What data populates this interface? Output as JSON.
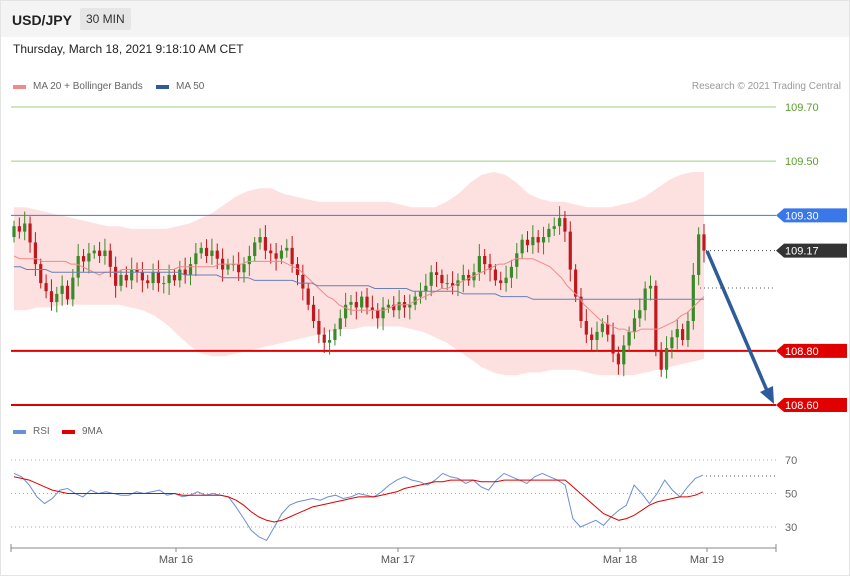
{
  "header": {
    "symbol": "USD/JPY",
    "interval": "30 MIN"
  },
  "timestamp": "Thursday, March 18, 2021 9:18:10 AM CET",
  "legend": {
    "ma20": {
      "label": "MA 20 + Bollinger Bands",
      "color": "#f08a8a"
    },
    "ma50": {
      "label": "MA 50",
      "color": "#2f5b9a"
    }
  },
  "copyright": "Research © 2021 Trading Central",
  "rsi_legend": {
    "rsi": {
      "label": "RSI",
      "color": "#6c8fd6"
    },
    "ma9": {
      "label": "9MA",
      "color": "#e00000"
    }
  },
  "colors": {
    "up": "#3a8a2a",
    "down": "#c0181c",
    "support": "#e00000",
    "resistance": "#3a78ea",
    "target": "#666666",
    "arrow": "#2f5b9a",
    "band": "#fde0e0"
  },
  "chart_data": [
    {
      "type": "candlestick",
      "ylim": [
        108.55,
        109.75
      ],
      "x_ticks": [
        "Mar 16",
        "Mar 17",
        "Mar 18",
        "Mar 19"
      ],
      "levels": [
        {
          "value": 109.7,
          "label": "109.70",
          "kind": "target"
        },
        {
          "value": 109.5,
          "label": "109.50",
          "kind": "target"
        },
        {
          "value": 109.3,
          "label": "109.30",
          "kind": "resistance"
        },
        {
          "value": 109.17,
          "label": "109.17",
          "kind": "last"
        },
        {
          "value": 108.8,
          "label": "108.80",
          "kind": "support"
        },
        {
          "value": 108.6,
          "label": "108.60",
          "kind": "support"
        }
      ],
      "close": [
        109.26,
        109.24,
        109.27,
        109.2,
        109.12,
        109.05,
        109.02,
        108.98,
        109.01,
        109.04,
        108.99,
        109.07,
        109.15,
        109.13,
        109.16,
        109.17,
        109.15,
        109.17,
        109.11,
        109.04,
        109.08,
        109.06,
        109.1,
        109.09,
        109.06,
        109.05,
        109.09,
        109.05,
        109.05,
        109.08,
        109.06,
        109.1,
        109.08,
        109.12,
        109.16,
        109.18,
        109.15,
        109.17,
        109.14,
        109.1,
        109.12,
        109.12,
        109.09,
        109.12,
        109.15,
        109.2,
        109.22,
        109.17,
        109.16,
        109.14,
        109.17,
        109.18,
        109.12,
        109.08,
        109.03,
        108.97,
        108.91,
        108.86,
        108.83,
        108.84,
        108.88,
        108.92,
        108.97,
        108.98,
        108.96,
        109.0,
        108.96,
        108.95,
        108.92,
        108.96,
        108.97,
        108.95,
        108.98,
        108.96,
        108.97,
        109.0,
        109.02,
        109.04,
        109.09,
        109.08,
        109.05,
        109.05,
        109.04,
        109.06,
        109.08,
        109.06,
        109.09,
        109.15,
        109.12,
        109.1,
        109.06,
        109.05,
        109.07,
        109.11,
        109.16,
        109.21,
        109.19,
        109.22,
        109.2,
        109.22,
        109.25,
        109.26,
        109.29,
        109.24,
        109.1,
        109.0,
        108.91,
        108.86,
        108.84,
        108.87,
        108.9,
        108.86,
        108.79,
        108.75,
        108.82,
        108.87,
        108.92,
        108.95,
        109.03,
        109.04,
        108.8,
        108.73,
        108.81,
        108.85,
        108.88,
        108.84,
        108.91,
        109.08,
        109.23,
        109.17
      ],
      "ma20": [
        109.15,
        109.14,
        109.14,
        109.14,
        109.14,
        109.13,
        109.13,
        109.13,
        109.13,
        109.13,
        109.12,
        109.12,
        109.11,
        109.1,
        109.09,
        109.08,
        109.09,
        109.09,
        109.09,
        109.1,
        109.1,
        109.1,
        109.1,
        109.1,
        109.1,
        109.1,
        109.1,
        109.1,
        109.1,
        109.11,
        109.11,
        109.11,
        109.11,
        109.11,
        109.11,
        109.11,
        109.12,
        109.12,
        109.12,
        109.12,
        109.12,
        109.13,
        109.13,
        109.13,
        109.13,
        109.13,
        109.13,
        109.13,
        109.12,
        109.11,
        109.1,
        109.08,
        109.06,
        109.04,
        109.02,
        109.0,
        108.99,
        108.97,
        108.96,
        108.95,
        108.95,
        108.95,
        108.95,
        108.95,
        108.95,
        108.95,
        108.96,
        108.97,
        108.97,
        108.97,
        108.98,
        108.99,
        109.0,
        109.01,
        109.02,
        109.03,
        109.03,
        109.04,
        109.05,
        109.06,
        109.07,
        109.08,
        109.09,
        109.1,
        109.11,
        109.12,
        109.12,
        109.13,
        109.14,
        109.14,
        109.14,
        109.14,
        109.13,
        109.12,
        109.11,
        109.09,
        109.07,
        109.04,
        109.02,
        109.0,
        108.97,
        108.95,
        108.93,
        108.91,
        108.9,
        108.89,
        108.88,
        108.88,
        108.87,
        108.87,
        108.88,
        108.88,
        108.88,
        108.88,
        108.89,
        108.9,
        108.91,
        108.93,
        108.94,
        108.96,
        108.98,
        109.0
      ],
      "ma50": [
        109.11,
        109.11,
        109.1,
        109.1,
        109.1,
        109.1,
        109.09,
        109.09,
        109.09,
        109.09,
        109.09,
        109.09,
        109.09,
        109.09,
        109.09,
        109.09,
        109.09,
        109.09,
        109.09,
        109.09,
        109.09,
        109.09,
        109.09,
        109.09,
        109.09,
        109.09,
        109.09,
        109.08,
        109.08,
        109.08,
        109.08,
        109.08,
        109.08,
        109.07,
        109.07,
        109.07,
        109.07,
        109.07,
        109.06,
        109.06,
        109.06,
        109.06,
        109.06,
        109.06,
        109.06,
        109.05,
        109.05,
        109.05,
        109.04,
        109.04,
        109.04,
        109.04,
        109.04,
        109.04,
        109.04,
        109.04,
        109.04,
        109.03,
        109.03,
        109.03,
        109.03,
        109.03,
        109.03,
        109.02,
        109.02,
        109.02,
        109.02,
        109.02,
        109.02,
        109.02,
        109.02,
        109.01,
        109.01,
        109.01,
        109.01,
        109.01,
        109.01,
        109.0,
        109.0,
        109.0,
        109.0,
        109.0,
        108.99,
        108.99,
        108.99,
        108.99,
        108.99,
        108.99,
        108.99,
        108.99,
        108.99,
        108.99,
        108.99,
        108.99,
        108.99,
        108.99,
        108.99,
        108.99,
        108.99,
        108.99,
        108.99,
        108.99,
        108.99,
        108.99,
        108.99,
        108.99,
        108.99,
        108.99,
        108.99,
        108.99
      ],
      "bb_upper": [
        109.33,
        109.33,
        109.32,
        109.31,
        109.3,
        109.29,
        109.28,
        109.27,
        109.26,
        109.26,
        109.25,
        109.25,
        109.25,
        109.25,
        109.26,
        109.27,
        109.29,
        109.31,
        109.34,
        109.37,
        109.39,
        109.4,
        109.4,
        109.38,
        109.37,
        109.36,
        109.35,
        109.35,
        109.35,
        109.35,
        109.35,
        109.35,
        109.35,
        109.34,
        109.33,
        109.33,
        109.33,
        109.35,
        109.38,
        109.42,
        109.45,
        109.46,
        109.45,
        109.42,
        109.38,
        109.36,
        109.35,
        109.35,
        109.34,
        109.33,
        109.33,
        109.33,
        109.34,
        109.35,
        109.37,
        109.4,
        109.43,
        109.45,
        109.46,
        109.46
      ],
      "bb_lower": [
        108.95,
        108.95,
        108.96,
        108.96,
        108.97,
        108.97,
        108.97,
        108.97,
        108.97,
        108.97,
        108.96,
        108.95,
        108.93,
        108.9,
        108.86,
        108.82,
        108.79,
        108.78,
        108.78,
        108.79,
        108.8,
        108.81,
        108.82,
        108.83,
        108.84,
        108.85,
        108.86,
        108.87,
        108.88,
        108.88,
        108.89,
        108.89,
        108.89,
        108.89,
        108.88,
        108.87,
        108.85,
        108.83,
        108.8,
        108.77,
        108.74,
        108.72,
        108.71,
        108.71,
        108.72,
        108.72,
        108.73,
        108.73,
        108.73,
        108.72,
        108.71,
        108.71,
        108.71,
        108.71,
        108.72,
        108.73,
        108.74,
        108.75,
        108.76,
        108.77
      ]
    },
    {
      "type": "line",
      "ylim": [
        20,
        75
      ],
      "y_ticks": [
        70,
        50,
        30
      ],
      "series": [
        {
          "name": "RSI",
          "values": [
            62,
            60,
            55,
            48,
            44,
            47,
            52,
            53,
            50,
            48,
            52,
            50,
            51,
            50,
            49,
            49,
            51,
            50,
            51,
            52,
            49,
            50,
            48,
            49,
            51,
            49,
            50,
            49,
            48,
            42,
            35,
            28,
            24,
            22,
            30,
            38,
            43,
            45,
            46,
            47,
            46,
            48,
            49,
            47,
            48,
            50,
            49,
            48,
            51,
            55,
            58,
            60,
            58,
            57,
            55,
            58,
            62,
            60,
            59,
            56,
            58,
            54,
            52,
            58,
            62,
            60,
            58,
            56,
            60,
            62,
            60,
            58,
            55,
            35,
            30,
            32,
            34,
            31,
            36,
            40,
            43,
            55,
            50,
            44,
            50,
            58,
            52,
            48,
            54,
            59,
            61
          ]
        },
        {
          "name": "9MA",
          "values": [
            60,
            59,
            58,
            56,
            54,
            52,
            51,
            50,
            50,
            50,
            50,
            50,
            50,
            50,
            50,
            50,
            50,
            50,
            50,
            50,
            50,
            50,
            49,
            49,
            49,
            49,
            49,
            49,
            48,
            46,
            43,
            39,
            36,
            34,
            33,
            34,
            36,
            38,
            40,
            42,
            43,
            44,
            45,
            46,
            47,
            48,
            48,
            48,
            49,
            50,
            51,
            53,
            54,
            55,
            56,
            57,
            57,
            58,
            58,
            58,
            58,
            57,
            57,
            57,
            58,
            58,
            58,
            58,
            58,
            58,
            58,
            58,
            58,
            54,
            50,
            46,
            42,
            38,
            36,
            34,
            35,
            37,
            40,
            43,
            45,
            46,
            47,
            48,
            48,
            49,
            51
          ]
        }
      ]
    }
  ]
}
